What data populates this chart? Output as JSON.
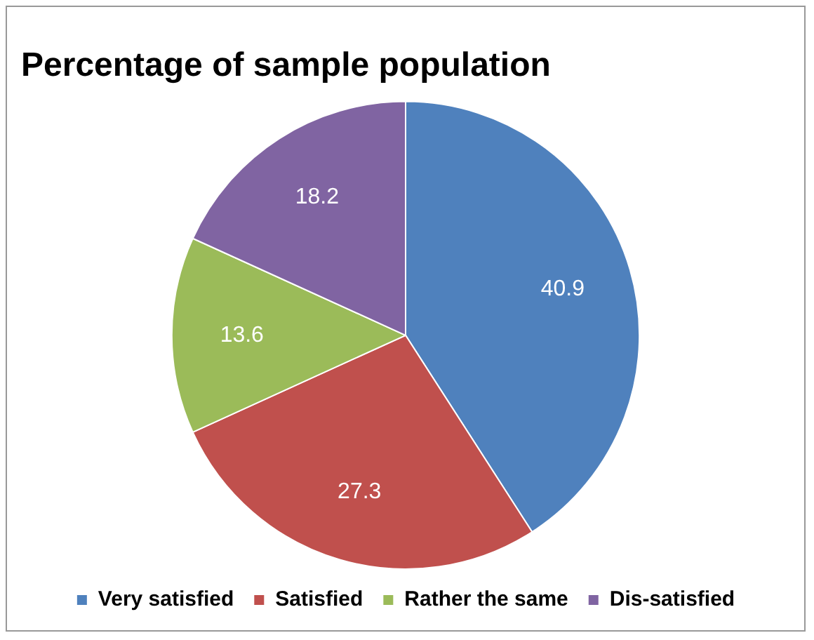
{
  "chart_data": {
    "type": "pie",
    "title": "Percentage of sample population",
    "categories": [
      "Very satisfied",
      "Satisfied",
      "Rather the same",
      "Dis-satisfied"
    ],
    "values": [
      40.9,
      27.3,
      13.6,
      18.2
    ],
    "colors": [
      "#4f81bd",
      "#c0504d",
      "#9bbb59",
      "#8064a2"
    ],
    "data_labels": true,
    "legend": "bottom"
  }
}
